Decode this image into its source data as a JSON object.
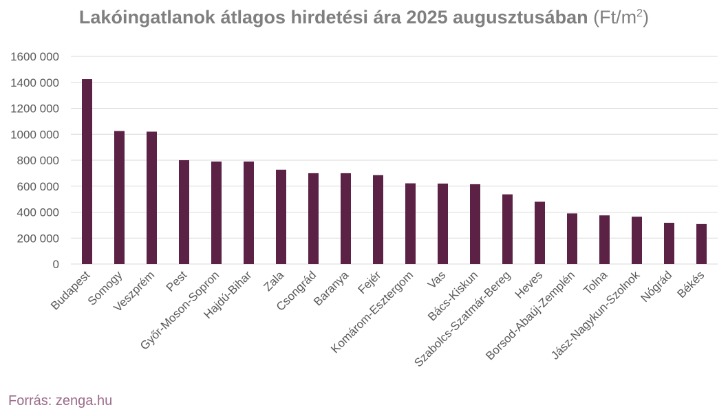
{
  "title": {
    "main": "Lakóingatlanok átlagos hirdetési ára 2025 augusztusában",
    "unit_prefix": "(Ft/m",
    "unit_sup": "2",
    "unit_suffix": ")"
  },
  "source": "Forrás: zenga.hu",
  "colors": {
    "bar": "#5b2245",
    "grid": "#d9d9d9",
    "text": "#595959",
    "title": "#7f7f7f",
    "source": "#9b6b8a"
  },
  "chart_data": {
    "type": "bar",
    "categories": [
      "Budapest",
      "Somogy",
      "Veszprém",
      "Pest",
      "Győr-Moson-Sopron",
      "Hajdú-Bihar",
      "Zala",
      "Csongrád",
      "Baranya",
      "Fejér",
      "Komárom-Esztergom",
      "Vas",
      "Bács-Kiskun",
      "Szabolcs-Szatmár-Bereg",
      "Heves",
      "Borsod-Abaúj-Zemplén",
      "Tolna",
      "Jász-Nagykun-Szolnok",
      "Nógrád",
      "Békés"
    ],
    "values": [
      1425000,
      1025000,
      1020000,
      800000,
      790000,
      790000,
      727000,
      700000,
      700000,
      685000,
      622000,
      620000,
      615000,
      537000,
      480000,
      390000,
      375000,
      365000,
      318000,
      308000
    ],
    "ylim": [
      0,
      1600000
    ],
    "yticks": [
      0,
      200000,
      400000,
      600000,
      800000,
      1000000,
      1200000,
      1400000,
      1600000
    ],
    "ytick_labels": [
      "0",
      "200 000",
      "400 000",
      "600 000",
      "800 000",
      "1000 000",
      "1200 000",
      "1400 000",
      "1600 000"
    ],
    "grid": true,
    "legend": "none"
  }
}
